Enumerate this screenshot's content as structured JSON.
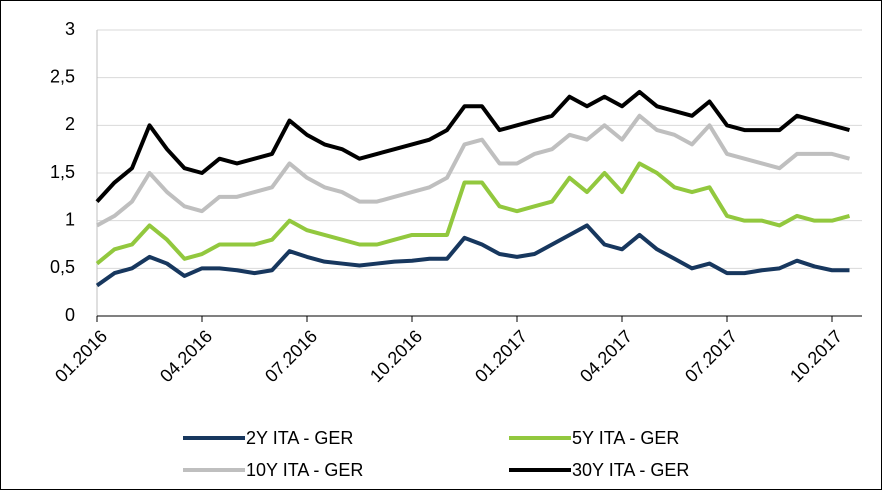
{
  "chart_data": {
    "type": "line",
    "categories": [
      "01.2016",
      null,
      null,
      null,
      null,
      null,
      "04.2016",
      null,
      null,
      null,
      null,
      null,
      "07.2016",
      null,
      null,
      null,
      null,
      null,
      "10.2016",
      null,
      null,
      null,
      null,
      null,
      "01.2017",
      null,
      null,
      null,
      null,
      null,
      "04.2017",
      null,
      null,
      null,
      null,
      null,
      "07.2017",
      null,
      null,
      null,
      null,
      null,
      "10.2017",
      null
    ],
    "series": [
      {
        "name": "2Y ITA - GER",
        "color": "#17375e",
        "values": [
          0.32,
          0.45,
          0.5,
          0.62,
          0.55,
          0.42,
          0.5,
          0.5,
          0.48,
          0.45,
          0.48,
          0.68,
          0.62,
          0.57,
          0.55,
          0.53,
          0.55,
          0.57,
          0.58,
          0.6,
          0.6,
          0.82,
          0.75,
          0.65,
          0.62,
          0.65,
          0.75,
          0.85,
          0.95,
          0.75,
          0.7,
          0.85,
          0.7,
          0.6,
          0.5,
          0.55,
          0.45,
          0.45,
          0.48,
          0.5,
          0.58,
          0.52,
          0.48,
          0.48
        ]
      },
      {
        "name": "5Y ITA - GER",
        "color": "#92c83e",
        "values": [
          0.55,
          0.7,
          0.75,
          0.95,
          0.8,
          0.6,
          0.65,
          0.75,
          0.75,
          0.75,
          0.8,
          1.0,
          0.9,
          0.85,
          0.8,
          0.75,
          0.75,
          0.8,
          0.85,
          0.85,
          0.85,
          1.4,
          1.4,
          1.15,
          1.1,
          1.15,
          1.2,
          1.45,
          1.3,
          1.5,
          1.3,
          1.6,
          1.5,
          1.35,
          1.3,
          1.35,
          1.05,
          1.0,
          1.0,
          0.95,
          1.05,
          1.0,
          1.0,
          1.05
        ]
      },
      {
        "name": "10Y ITA - GER",
        "color": "#bfbfbf",
        "values": [
          0.95,
          1.05,
          1.2,
          1.5,
          1.3,
          1.15,
          1.1,
          1.25,
          1.25,
          1.3,
          1.35,
          1.6,
          1.45,
          1.35,
          1.3,
          1.2,
          1.2,
          1.25,
          1.3,
          1.35,
          1.45,
          1.8,
          1.85,
          1.6,
          1.6,
          1.7,
          1.75,
          1.9,
          1.85,
          2.0,
          1.85,
          2.1,
          1.95,
          1.9,
          1.8,
          2.0,
          1.7,
          1.65,
          1.6,
          1.55,
          1.7,
          1.7,
          1.7,
          1.65
        ]
      },
      {
        "name": "30Y ITA - GER",
        "color": "#000000",
        "values": [
          1.2,
          1.4,
          1.55,
          2.0,
          1.75,
          1.55,
          1.5,
          1.65,
          1.6,
          1.65,
          1.7,
          2.05,
          1.9,
          1.8,
          1.75,
          1.65,
          1.7,
          1.75,
          1.8,
          1.85,
          1.95,
          2.2,
          2.2,
          1.95,
          2.0,
          2.05,
          2.1,
          2.3,
          2.2,
          2.3,
          2.2,
          2.35,
          2.2,
          2.15,
          2.1,
          2.25,
          2.0,
          1.95,
          1.95,
          1.95,
          2.1,
          2.05,
          2.0,
          1.95
        ]
      }
    ],
    "ylim": [
      0,
      3
    ],
    "yticks": [
      0,
      {
        "value": 0.5,
        "label": "0,5"
      },
      1,
      {
        "value": 1.5,
        "label": "1,5"
      },
      2,
      {
        "value": 2.5,
        "label": "2,5"
      },
      3
    ],
    "grid": true
  }
}
